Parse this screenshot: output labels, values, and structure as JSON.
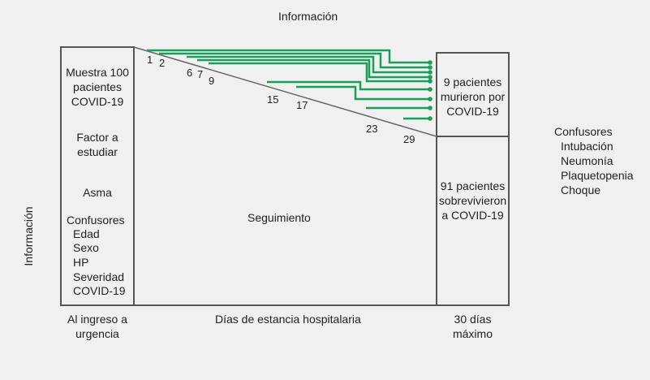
{
  "top_label": "Información",
  "side_label": "Información",
  "left_box": {
    "sample": "Muestra 100 pacientes COVID-19",
    "factor": "Factor a estudiar",
    "factor_value": "Asma",
    "confounders_title": "Confusores",
    "confounders": [
      "Edad",
      "Sexo",
      "HP",
      "Severidad",
      "COVID-19"
    ]
  },
  "middle_label": "Seguimiento",
  "event_days": [
    "1",
    "2",
    "6",
    "7",
    "9",
    "15",
    "17",
    "23",
    "29"
  ],
  "died_box": "9 pacientes murieron por COVID-19",
  "survived_box": "91 pacientes sobrevivieron a COVID-19",
  "right_confounders": {
    "title": "Confusores",
    "items": [
      "Intubación",
      "Neumonía",
      "Plaquetopenia",
      "Choque"
    ]
  },
  "bottom": {
    "left": "Al ingreso a urgencia",
    "middle": "Días de estancia hospitalaria",
    "right": "30 días máximo"
  },
  "colors": {
    "arrow": "#1a9e5a",
    "border": "#555555",
    "diagonal": "#666666"
  }
}
